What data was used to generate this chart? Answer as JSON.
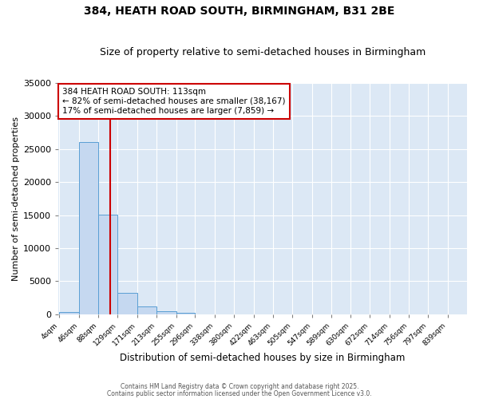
{
  "title": "384, HEATH ROAD SOUTH, BIRMINGHAM, B31 2BE",
  "subtitle": "Size of property relative to semi-detached houses in Birmingham",
  "xlabel": "Distribution of semi-detached houses by size in Birmingham",
  "ylabel": "Number of semi-detached properties",
  "bins": [
    "4sqm",
    "46sqm",
    "88sqm",
    "129sqm",
    "171sqm",
    "213sqm",
    "255sqm",
    "296sqm",
    "338sqm",
    "380sqm",
    "422sqm",
    "463sqm",
    "505sqm",
    "547sqm",
    "589sqm",
    "630sqm",
    "672sqm",
    "714sqm",
    "756sqm",
    "797sqm",
    "839sqm"
  ],
  "bin_edges": [
    4,
    46,
    88,
    129,
    171,
    213,
    255,
    296,
    338,
    380,
    422,
    463,
    505,
    547,
    589,
    630,
    672,
    714,
    756,
    797,
    839
  ],
  "bar_heights": [
    310,
    26100,
    15100,
    3200,
    1150,
    430,
    190,
    0,
    0,
    0,
    0,
    0,
    0,
    0,
    0,
    0,
    0,
    0,
    0,
    0
  ],
  "bar_color": "#c5d8f0",
  "bar_edge_color": "#5a9fd4",
  "property_size": 113,
  "annotation_line1": "384 HEATH ROAD SOUTH: 113sqm",
  "annotation_line2": "← 82% of semi-detached houses are smaller (38,167)",
  "annotation_line3": "17% of semi-detached houses are larger (7,859) →",
  "vline_color": "#cc0000",
  "annotation_box_edge_color": "#cc0000",
  "ylim": [
    0,
    35000
  ],
  "yticks": [
    0,
    5000,
    10000,
    15000,
    20000,
    25000,
    30000,
    35000
  ],
  "footer1": "Contains HM Land Registry data © Crown copyright and database right 2025.",
  "footer2": "Contains public sector information licensed under the Open Government Licence v3.0.",
  "bg_color": "#dce8f5",
  "fig_bg_color": "#ffffff",
  "grid_color": "#ffffff"
}
